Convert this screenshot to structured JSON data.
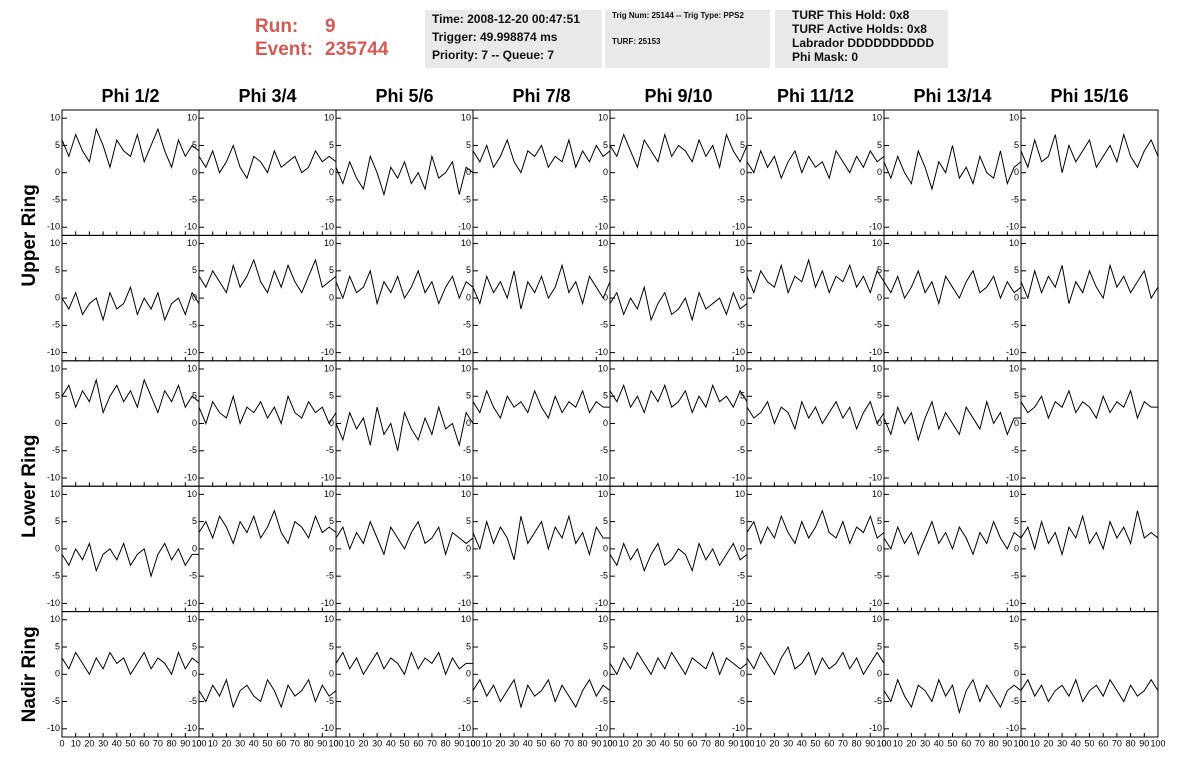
{
  "header": {
    "run_label": "Run:",
    "run": 9,
    "event_label": "Event:",
    "event": 235744,
    "time": "Time: 2008-12-20 00:47:51",
    "trigger": "Trigger: 49.998874 ms",
    "priority": "Priority: 7 -- Queue: 7",
    "trig_num": "Trig Num: 25144 -- Trig Type: PPS2",
    "turf": "TURF: 25153",
    "turf_hold": "TURF This Hold: 0x8",
    "turf_active": "TURF Active Holds: 0x8",
    "labrador": "Labrador DDDDDDDDDD",
    "phi_mask": "Phi Mask: 0"
  },
  "chart_data": {
    "type": "line",
    "color": "#000000",
    "columns": [
      "Phi 1/2",
      "Phi 3/4",
      "Phi 5/6",
      "Phi 7/8",
      "Phi 9/10",
      "Phi 11/12",
      "Phi 13/14",
      "Phi 15/16"
    ],
    "rows": [
      "Upper Ring",
      "Lower Ring",
      "Nadir Ring"
    ],
    "xlim": [
      0,
      100
    ],
    "ylim": [
      -11.5,
      11.5
    ],
    "xticks": [
      0,
      10,
      20,
      30,
      40,
      50,
      60,
      70,
      80,
      90,
      100
    ],
    "yticks": [
      -10,
      -5,
      0,
      5,
      10
    ],
    "x": [
      0,
      5,
      10,
      15,
      20,
      25,
      30,
      35,
      40,
      45,
      50,
      55,
      60,
      65,
      70,
      75,
      80,
      85,
      90,
      95,
      100
    ],
    "panels": [
      [
        6,
        3,
        7,
        4,
        2,
        8,
        5,
        1,
        6,
        4,
        3,
        7,
        2,
        5,
        8,
        4,
        1,
        6,
        3,
        5,
        4
      ],
      [
        3,
        1,
        4,
        0,
        2,
        5,
        1,
        -1,
        3,
        2,
        0,
        4,
        1,
        2,
        3,
        0,
        1,
        4,
        2,
        3,
        2
      ],
      [
        1,
        -2,
        2,
        -1,
        -3,
        3,
        0,
        -4,
        1,
        -1,
        2,
        -2,
        0,
        -3,
        3,
        -1,
        0,
        2,
        -4,
        1,
        0
      ],
      [
        4,
        2,
        5,
        1,
        3,
        6,
        2,
        0,
        4,
        3,
        5,
        1,
        3,
        2,
        6,
        1,
        4,
        2,
        5,
        3,
        4
      ],
      [
        5,
        3,
        7,
        4,
        1,
        6,
        4,
        2,
        7,
        3,
        5,
        4,
        2,
        6,
        3,
        5,
        1,
        7,
        4,
        2,
        5
      ],
      [
        2,
        0,
        4,
        1,
        3,
        -1,
        2,
        4,
        0,
        3,
        1,
        2,
        -1,
        4,
        2,
        0,
        3,
        1,
        4,
        2,
        3
      ],
      [
        2,
        -1,
        3,
        0,
        -2,
        4,
        1,
        -3,
        2,
        0,
        5,
        -1,
        1,
        -2,
        3,
        0,
        -1,
        4,
        -2,
        1,
        2
      ],
      [
        4,
        1,
        6,
        2,
        3,
        7,
        0,
        5,
        2,
        4,
        6,
        1,
        3,
        5,
        2,
        7,
        3,
        1,
        4,
        6,
        3
      ],
      [
        0,
        -2,
        1,
        -3,
        -1,
        0,
        -4,
        1,
        -2,
        -1,
        2,
        -3,
        0,
        -2,
        1,
        -4,
        -1,
        0,
        -3,
        1,
        -1
      ],
      [
        4,
        2,
        5,
        3,
        1,
        6,
        2,
        4,
        7,
        3,
        1,
        5,
        2,
        6,
        3,
        1,
        4,
        7,
        2,
        3,
        4
      ],
      [
        3,
        0,
        4,
        1,
        2,
        5,
        -1,
        3,
        1,
        4,
        0,
        2,
        5,
        1,
        3,
        -1,
        2,
        4,
        0,
        3,
        2
      ],
      [
        2,
        -1,
        4,
        1,
        3,
        0,
        5,
        -2,
        3,
        1,
        4,
        0,
        2,
        6,
        1,
        3,
        -1,
        4,
        2,
        0,
        3
      ],
      [
        -1,
        1,
        -3,
        0,
        -2,
        2,
        -4,
        -1,
        1,
        -3,
        -2,
        0,
        -4,
        1,
        -2,
        -1,
        0,
        -3,
        1,
        -2,
        -1
      ],
      [
        4,
        1,
        5,
        3,
        2,
        6,
        1,
        4,
        3,
        7,
        2,
        5,
        1,
        4,
        3,
        6,
        2,
        4,
        1,
        5,
        3
      ],
      [
        3,
        1,
        4,
        0,
        2,
        5,
        1,
        3,
        -1,
        4,
        2,
        0,
        3,
        5,
        1,
        2,
        4,
        0,
        3,
        1,
        2
      ],
      [
        3,
        0,
        5,
        1,
        4,
        2,
        6,
        -1,
        3,
        1,
        5,
        2,
        0,
        6,
        2,
        4,
        1,
        3,
        5,
        0,
        2
      ],
      [
        5,
        7,
        3,
        6,
        4,
        8,
        2,
        5,
        7,
        4,
        6,
        3,
        8,
        5,
        2,
        6,
        4,
        7,
        3,
        5,
        4
      ],
      [
        3,
        0,
        4,
        2,
        1,
        5,
        0,
        3,
        2,
        4,
        1,
        3,
        0,
        5,
        2,
        1,
        4,
        2,
        3,
        0,
        2
      ],
      [
        0,
        -3,
        2,
        -1,
        1,
        -4,
        3,
        -2,
        0,
        -5,
        2,
        -1,
        -3,
        1,
        -2,
        3,
        -1,
        0,
        -4,
        2,
        0
      ],
      [
        4,
        2,
        6,
        3,
        1,
        5,
        3,
        4,
        2,
        6,
        3,
        1,
        5,
        2,
        4,
        3,
        6,
        2,
        4,
        3,
        3
      ],
      [
        6,
        4,
        7,
        3,
        5,
        2,
        6,
        4,
        7,
        3,
        4,
        6,
        2,
        5,
        3,
        7,
        4,
        5,
        3,
        6,
        4
      ],
      [
        3,
        1,
        2,
        4,
        0,
        3,
        2,
        -1,
        4,
        1,
        3,
        0,
        2,
        4,
        1,
        3,
        -1,
        2,
        4,
        0,
        2
      ],
      [
        1,
        -2,
        3,
        0,
        2,
        -3,
        1,
        4,
        -1,
        2,
        0,
        -2,
        3,
        1,
        -1,
        4,
        0,
        2,
        -2,
        1,
        1
      ],
      [
        4,
        2,
        3,
        5,
        1,
        4,
        3,
        6,
        2,
        4,
        3,
        1,
        5,
        2,
        4,
        3,
        6,
        1,
        4,
        3,
        3
      ],
      [
        -1,
        -3,
        0,
        -2,
        1,
        -4,
        -1,
        0,
        -2,
        1,
        -3,
        -1,
        0,
        -5,
        -1,
        1,
        -2,
        0,
        -3,
        -1,
        -1
      ],
      [
        3,
        5,
        2,
        6,
        4,
        1,
        5,
        3,
        6,
        2,
        4,
        7,
        3,
        1,
        5,
        4,
        2,
        6,
        3,
        4,
        3
      ],
      [
        2,
        4,
        0,
        3,
        1,
        5,
        2,
        -1,
        4,
        2,
        0,
        3,
        5,
        1,
        2,
        4,
        -1,
        3,
        2,
        1,
        2
      ],
      [
        3,
        0,
        5,
        1,
        4,
        2,
        -2,
        6,
        1,
        3,
        5,
        0,
        4,
        2,
        6,
        1,
        3,
        -1,
        4,
        2,
        2
      ],
      [
        -1,
        -3,
        1,
        -2,
        0,
        -4,
        -1,
        1,
        -3,
        -2,
        0,
        -1,
        -4,
        1,
        -2,
        0,
        -3,
        -1,
        1,
        -2,
        -1
      ],
      [
        3,
        5,
        1,
        4,
        2,
        6,
        3,
        1,
        5,
        2,
        4,
        7,
        3,
        2,
        5,
        1,
        4,
        3,
        6,
        2,
        3
      ],
      [
        2,
        0,
        4,
        1,
        3,
        -1,
        2,
        5,
        1,
        3,
        0,
        4,
        2,
        -1,
        3,
        1,
        5,
        2,
        0,
        3,
        2
      ],
      [
        2,
        4,
        0,
        5,
        1,
        3,
        -1,
        4,
        2,
        6,
        1,
        3,
        0,
        5,
        2,
        4,
        1,
        7,
        2,
        3,
        2
      ],
      [
        3,
        1,
        4,
        2,
        0,
        3,
        1,
        4,
        2,
        3,
        0,
        2,
        4,
        1,
        3,
        2,
        0,
        4,
        1,
        3,
        2
      ],
      [
        -3,
        -5,
        -2,
        -4,
        -1,
        -6,
        -3,
        -2,
        -4,
        -5,
        -1,
        -3,
        -6,
        -2,
        -4,
        -3,
        -1,
        -5,
        -2,
        -4,
        -3
      ],
      [
        2,
        4,
        1,
        3,
        0,
        2,
        4,
        1,
        3,
        2,
        0,
        4,
        1,
        3,
        2,
        4,
        0,
        3,
        1,
        2,
        2
      ],
      [
        -3,
        -1,
        -4,
        -2,
        -5,
        -3,
        -1,
        -6,
        -2,
        -4,
        -3,
        -1,
        -5,
        -2,
        -4,
        -6,
        -3,
        -1,
        -4,
        -2,
        -3
      ],
      [
        2,
        0,
        3,
        1,
        4,
        2,
        0,
        3,
        1,
        4,
        2,
        0,
        3,
        2,
        1,
        4,
        0,
        3,
        2,
        1,
        2
      ],
      [
        3,
        1,
        4,
        2,
        0,
        3,
        5,
        1,
        2,
        4,
        0,
        3,
        1,
        2,
        4,
        1,
        3,
        0,
        2,
        4,
        2
      ],
      [
        -3,
        -5,
        -1,
        -4,
        -6,
        -2,
        -3,
        -5,
        -1,
        -4,
        -2,
        -7,
        -3,
        -1,
        -5,
        -2,
        -4,
        -6,
        -3,
        -2,
        -3
      ],
      [
        -3,
        -1,
        -4,
        -2,
        -5,
        -3,
        -2,
        -4,
        -1,
        -5,
        -3,
        -2,
        -4,
        -1,
        -3,
        -5,
        -2,
        -4,
        -3,
        -1,
        -3
      ]
    ]
  }
}
